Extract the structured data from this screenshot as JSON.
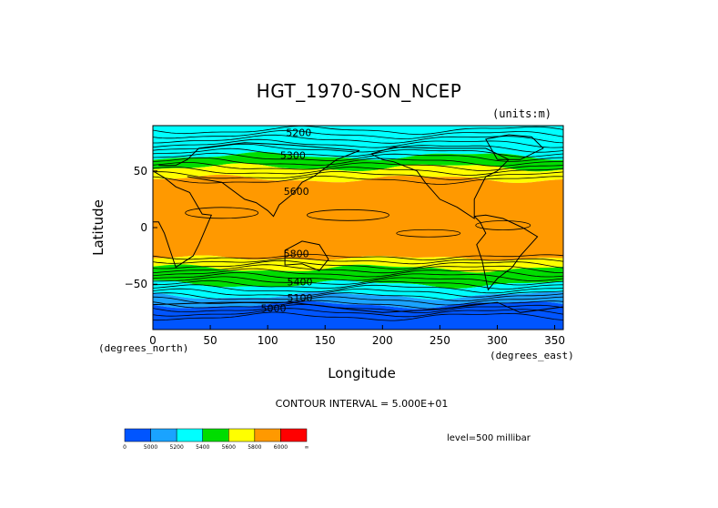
{
  "chart_data": {
    "type": "heatmap",
    "title": "HGT_1970-SON_NCEP",
    "units": "(units:m)",
    "xlabel": "Longitude",
    "ylabel": "Latitude",
    "x_units": "(degrees_north)",
    "x_units_right": "(degrees_east)",
    "xlim": [
      0,
      357.5
    ],
    "ylim": [
      -90,
      90
    ],
    "x_ticks": [
      "0",
      "50",
      "100",
      "150",
      "200",
      "250",
      "300",
      "350"
    ],
    "y_ticks": [
      "50",
      "0",
      "−50"
    ],
    "contour_interval": "CONTOUR INTERVAL = 5.000E+01",
    "level": "level=500 millibar",
    "colorbar": {
      "colors": [
        "#0055ff",
        "#1aa3ff",
        "#00ffff",
        "#00dd00",
        "#ffff00",
        "#ff9900",
        "#ff0000"
      ],
      "labels": [
        "0",
        "5000",
        "5200",
        "5400",
        "5600",
        "5800",
        "6000",
        "∞"
      ]
    },
    "bands": [
      {
        "lat_top": 90,
        "lat_bottom": 80,
        "value": 5200,
        "color": "#00ffff"
      },
      {
        "lat_top": 80,
        "lat_bottom": 63,
        "value": 5300,
        "color": "#00ffff"
      },
      {
        "lat_top": 63,
        "lat_bottom": 53,
        "value": 5400,
        "color": "#00dd00"
      },
      {
        "lat_top": 53,
        "lat_bottom": 43,
        "value": 5600,
        "color": "#ffff00"
      },
      {
        "lat_top": 43,
        "lat_bottom": -27,
        "value": 5800,
        "color": "#ff9900"
      },
      {
        "lat_top": -27,
        "lat_bottom": -36,
        "value": 5700,
        "color": "#ffff00"
      },
      {
        "lat_top": -36,
        "lat_bottom": -50,
        "value": 5500,
        "color": "#00dd00"
      },
      {
        "lat_top": -50,
        "lat_bottom": -60,
        "value": 5300,
        "color": "#00ffff"
      },
      {
        "lat_top": -60,
        "lat_bottom": -68,
        "value": 5150,
        "color": "#1aa3ff"
      },
      {
        "lat_top": -68,
        "lat_bottom": -90,
        "value": 4950,
        "color": "#0055ff"
      }
    ],
    "contour_labels": [
      {
        "text": "5200",
        "lon": 127,
        "lat": 84
      },
      {
        "text": "5300",
        "lon": 122,
        "lat": 64
      },
      {
        "text": "5600",
        "lon": 125,
        "lat": 32
      },
      {
        "text": "5800",
        "lon": 125,
        "lat": -23
      },
      {
        "text": "5400",
        "lon": 128,
        "lat": -48
      },
      {
        "text": "5100",
        "lon": 128,
        "lat": -62
      },
      {
        "text": "5000",
        "lon": 105,
        "lat": -71
      }
    ]
  }
}
